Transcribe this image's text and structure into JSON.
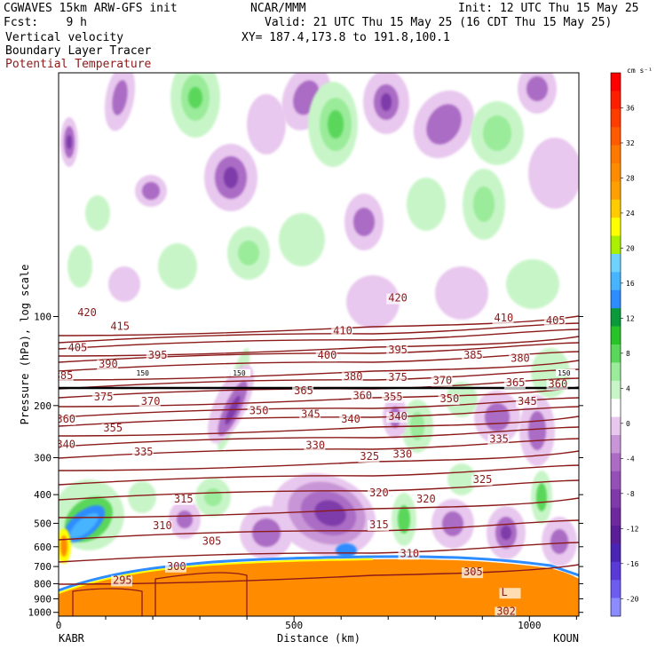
{
  "header": {
    "model": "CGWAVES 15km ARW-GFS init",
    "fcst": "Fcst:    9 h",
    "field1": "Vertical velocity",
    "field2": "Boundary Layer Tracer",
    "field3": "Potential Temperature",
    "org": "NCAR/MMM",
    "init": "Init: 12 UTC Thu 15 May 25",
    "valid": "Valid: 21 UTC Thu 15 May 25 (16 CDT Thu 15 May 25)",
    "xy": "XY= 187.4,173.8 to 191.8,100.1"
  },
  "chart_data": {
    "type": "contour",
    "xlabel": "Distance (km)",
    "ylabel": "Pressure (hPa), log scale",
    "x_ticks": [
      "0",
      "500",
      "1000"
    ],
    "x_range": [
      0,
      1105
    ],
    "y_ticks": [
      "100",
      "200",
      "300",
      "400",
      "500",
      "600",
      "700",
      "800",
      "900",
      "1000"
    ],
    "y_range": [
      15,
      1030
    ],
    "y_scale": "log",
    "left_station": "KABR",
    "right_station": "KOUN",
    "colorbar": {
      "unit": "cm s⁻¹",
      "labels": [
        "36",
        "32",
        "28",
        "24",
        "20",
        "16",
        "12",
        "8",
        "4",
        "0",
        "-4",
        "-8",
        "-12",
        "-16",
        "-20"
      ],
      "levels": [
        -22,
        -20,
        -18,
        -16,
        -14,
        -12,
        -10,
        -8,
        -6,
        -4,
        -2,
        2,
        4,
        6,
        8,
        10,
        12,
        14,
        16,
        18,
        20,
        22,
        24,
        26,
        28,
        30,
        32,
        34,
        36,
        38,
        40
      ],
      "colors": [
        "#8c8cff",
        "#6e5cf0",
        "#5a3ad6",
        "#4a24b4",
        "#5a1e96",
        "#6c2a9e",
        "#7e3aaa",
        "#9450b6",
        "#aa6cc4",
        "#c896d6",
        "#e8c8ee",
        "#ffffff",
        "#c8f5c8",
        "#9aeb9a",
        "#5ad75a",
        "#28c328",
        "#0a9a3c",
        "#2d8cff",
        "#46b4ff",
        "#6ed2ff",
        "#aaf000",
        "#ffff00",
        "#ffcc00",
        "#ffa000",
        "#ff8c00",
        "#ff7800",
        "#ff5a00",
        "#ff3c00",
        "#ff1e00",
        "#ff0000"
      ]
    },
    "theta_labels": [
      {
        "x": 40,
        "p": 99.5,
        "v": "420"
      },
      {
        "x": 110,
        "p": 111,
        "v": "415"
      },
      {
        "x": 20,
        "p": 131,
        "v": "405"
      },
      {
        "x": 85,
        "p": 149,
        "v": "390"
      },
      {
        "x": 190,
        "p": 139,
        "v": "395"
      },
      {
        "x": -10,
        "p": 163,
        "v": "385"
      },
      {
        "x": 75,
        "p": 192,
        "v": "375"
      },
      {
        "x": 175,
        "p": 199,
        "v": "370"
      },
      {
        "x": -5,
        "p": 228,
        "v": "360"
      },
      {
        "x": 95,
        "p": 245,
        "v": "355"
      },
      {
        "x": -5,
        "p": 278,
        "v": "340"
      },
      {
        "x": 160,
        "p": 295,
        "v": "335"
      },
      {
        "x": 245,
        "p": 425,
        "v": "315"
      },
      {
        "x": 200,
        "p": 523,
        "v": "310"
      },
      {
        "x": 305,
        "p": 591,
        "v": "305"
      },
      {
        "x": 230,
        "p": 718,
        "v": "300"
      },
      {
        "x": 115,
        "p": 800,
        "v": "295"
      },
      {
        "x": 700,
        "p": 89,
        "v": "420"
      },
      {
        "x": 583,
        "p": 115,
        "v": "410"
      },
      {
        "x": 925,
        "p": 104,
        "v": "410"
      },
      {
        "x": 1035,
        "p": 106,
        "v": "405"
      },
      {
        "x": 700,
        "p": 133,
        "v": "395"
      },
      {
        "x": 860,
        "p": 139,
        "v": "385"
      },
      {
        "x": 960,
        "p": 142,
        "v": "380"
      },
      {
        "x": 550,
        "p": 139,
        "v": "400"
      },
      {
        "x": 605,
        "p": 164,
        "v": "380"
      },
      {
        "x": 700,
        "p": 165,
        "v": "375"
      },
      {
        "x": 795,
        "p": 169,
        "v": "370"
      },
      {
        "x": 950,
        "p": 172,
        "v": "365"
      },
      {
        "x": 1040,
        "p": 174,
        "v": "360"
      },
      {
        "x": 500,
        "p": 183,
        "v": "365"
      },
      {
        "x": 625,
        "p": 190,
        "v": "360"
      },
      {
        "x": 690,
        "p": 192,
        "v": "355"
      },
      {
        "x": 810,
        "p": 195,
        "v": "350"
      },
      {
        "x": 975,
        "p": 199,
        "v": "345"
      },
      {
        "x": 405,
        "p": 214,
        "v": "350"
      },
      {
        "x": 515,
        "p": 220,
        "v": "345"
      },
      {
        "x": 600,
        "p": 228,
        "v": "340"
      },
      {
        "x": 700,
        "p": 224,
        "v": "340"
      },
      {
        "x": 915,
        "p": 267,
        "v": "335"
      },
      {
        "x": 525,
        "p": 280,
        "v": "330"
      },
      {
        "x": 640,
        "p": 305,
        "v": "325"
      },
      {
        "x": 710,
        "p": 300,
        "v": "330"
      },
      {
        "x": 880,
        "p": 365,
        "v": "325"
      },
      {
        "x": 660,
        "p": 405,
        "v": "320"
      },
      {
        "x": 760,
        "p": 425,
        "v": "320"
      },
      {
        "x": 660,
        "p": 520,
        "v": "315"
      },
      {
        "x": 725,
        "p": 650,
        "v": "310"
      },
      {
        "x": 860,
        "p": 750,
        "v": "305"
      },
      {
        "x": 940,
        "p": 880,
        "v": "L"
      },
      {
        "x": 930,
        "p": 1020,
        "v": "302"
      }
    ],
    "tracer_labels": [
      {
        "x": 165,
        "p": 157,
        "v": "150"
      },
      {
        "x": 370,
        "p": 157,
        "v": "150"
      },
      {
        "x": 1060,
        "p": 157,
        "v": "150"
      }
    ]
  }
}
